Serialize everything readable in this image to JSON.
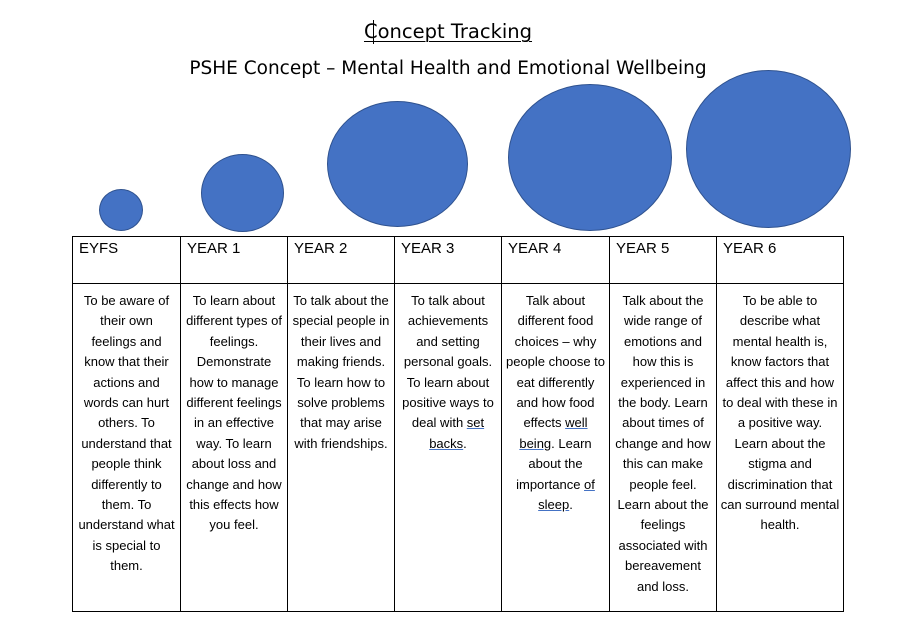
{
  "title": "Concept Tracking",
  "subtitle": "PSHE Concept – Mental Health and Emotional Wellbeing",
  "colors": {
    "circle_fill": "#4472c4",
    "circle_border": "#2f528f"
  },
  "years": [
    {
      "label": "EYFS",
      "text": "To be aware of their own feelings and know that their actions and words can hurt others.  To understand that people think differently to them.  To understand what is special to them."
    },
    {
      "label": "YEAR 1",
      "text": "To learn about different types of feelings. Demonstrate how to manage different feelings in an effective way.  To learn about loss and change and how this effects how you feel."
    },
    {
      "label": "YEAR 2",
      "text": "To talk about the special people in their lives and making friends. To learn how to solve problems that may arise with friendships."
    },
    {
      "label": "YEAR 3",
      "text_before": "To talk about achievements and setting personal goals. To learn about positive ways to deal with ",
      "text_link": "set backs",
      "text_after": "."
    },
    {
      "label": "YEAR 4",
      "text_before": "Talk about different food choices – why people choose to eat differently and how food effects ",
      "text_link": "well being",
      "text_middle": ".  Learn about the importance ",
      "text_link2": "of sleep",
      "text_after": "."
    },
    {
      "label": "YEAR 5",
      "text": "Talk about the wide range of emotions and how this is experienced in the body.  Learn about times of change and how this can make people feel. Learn about the feelings associated with bereavement and loss."
    },
    {
      "label": "YEAR 6",
      "text": "To be able to describe what mental health is, know factors that affect this and how to deal with these in a positive way. Learn about the stigma and discrimination that can surround mental health."
    }
  ]
}
